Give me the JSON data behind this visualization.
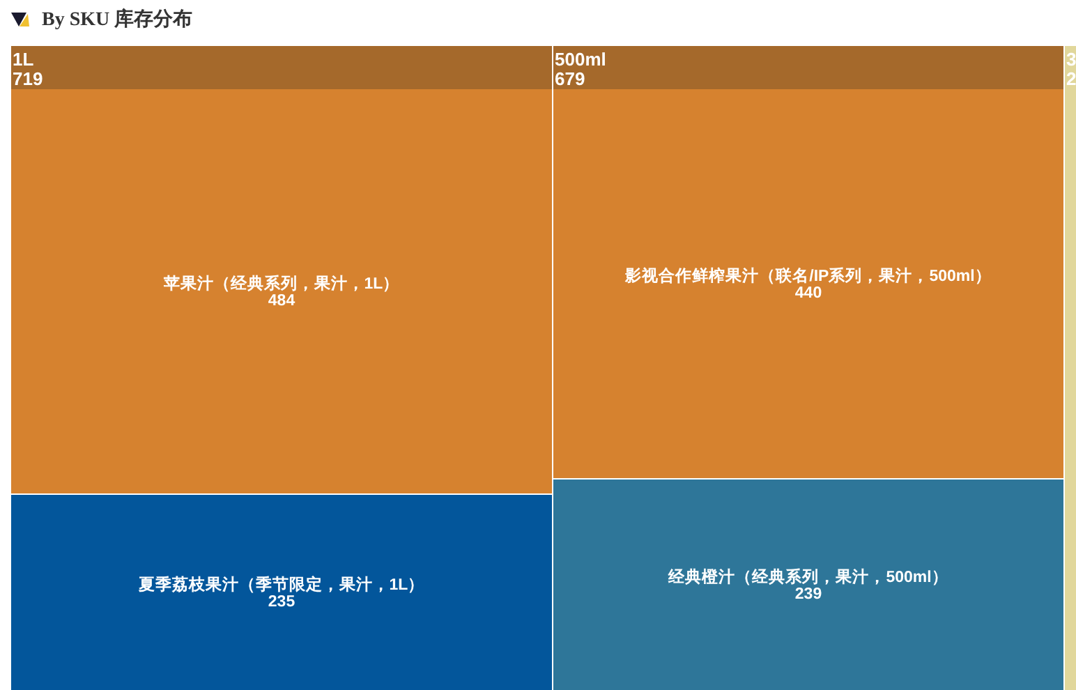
{
  "chart_data": {
    "type": "other",
    "title": "By SKU 库存分布",
    "categories": [
      "苹果汁（经典系列，果汁，1L）",
      "夏季荔枝果汁（季节限定，果汁，1L）",
      "影视合作鲜榨果汁（联名/IP系列，果汁，500ml）",
      "经典橙汁（经典系列，果汁，500ml）"
    ],
    "series": [
      {
        "name": "1L",
        "values": [
          484,
          235,
          null,
          null
        ],
        "colors": [
          "#d6822f",
          "#03569b",
          null,
          null
        ]
      },
      {
        "name": "500ml",
        "values": [
          null,
          null,
          440,
          239
        ],
        "colors": [
          null,
          null,
          "#d6822f",
          "#2e7699"
        ]
      },
      {
        "name": "3",
        "values": [
          null,
          null,
          null,
          null
        ]
      }
    ],
    "totals": [
      "719",
      "679",
      "2"
    ],
    "data_labels": true
  }
}
